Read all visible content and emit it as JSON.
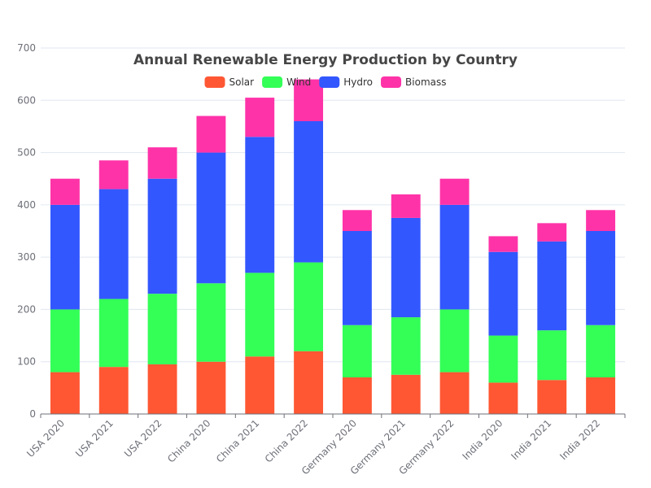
{
  "chart_data": {
    "type": "bar",
    "stacked": true,
    "title": "Annual Renewable Energy Production by Country",
    "categories": [
      "USA 2020",
      "USA 2021",
      "USA 2022",
      "China 2020",
      "China 2021",
      "China 2022",
      "Germany 2020",
      "Germany 2021",
      "Germany 2022",
      "India 2020",
      "India 2021",
      "India 2022"
    ],
    "series": [
      {
        "name": "Solar",
        "color": "#ff5733",
        "values": [
          80,
          90,
          95,
          100,
          110,
          120,
          70,
          75,
          80,
          60,
          65,
          70
        ]
      },
      {
        "name": "Wind",
        "color": "#33ff57",
        "values": [
          120,
          130,
          135,
          150,
          160,
          170,
          100,
          110,
          120,
          90,
          95,
          100
        ]
      },
      {
        "name": "Hydro",
        "color": "#3357ff",
        "values": [
          200,
          210,
          220,
          250,
          260,
          270,
          180,
          190,
          200,
          160,
          170,
          180
        ]
      },
      {
        "name": "Biomass",
        "color": "#ff33a8",
        "values": [
          50,
          55,
          60,
          70,
          75,
          80,
          40,
          45,
          50,
          30,
          35,
          40
        ]
      }
    ],
    "ylim": [
      0,
      700
    ],
    "yticks": [
      0,
      100,
      200,
      300,
      400,
      500,
      600,
      700
    ],
    "xlabel": "",
    "ylabel": "",
    "grid": true,
    "legend_position": "top-center"
  }
}
